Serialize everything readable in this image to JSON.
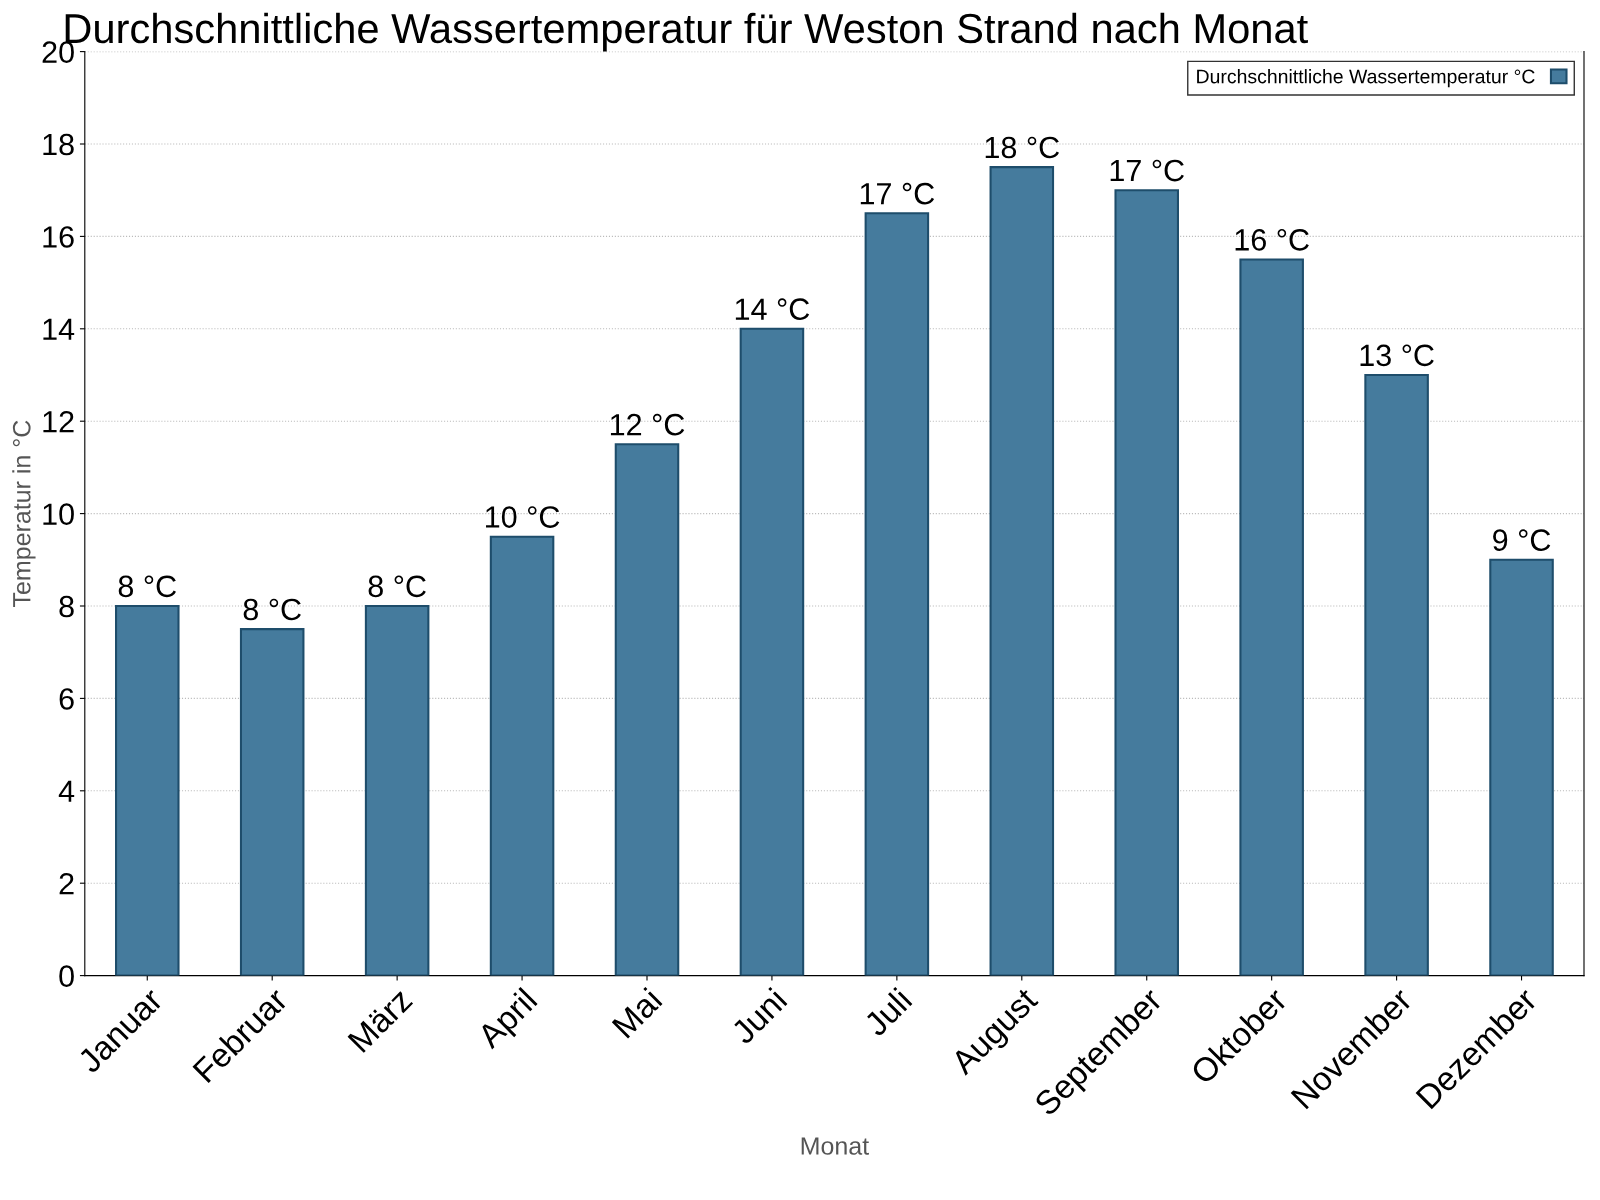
{
  "chart_data": {
    "type": "bar",
    "title": "Durchschnittliche Wassertemperatur für Weston Strand nach Monat",
    "xlabel": "Monat",
    "ylabel": "Temperatur in °C",
    "categories": [
      "Januar",
      "Februar",
      "März",
      "April",
      "Mai",
      "Juni",
      "Juli",
      "August",
      "September",
      "Oktober",
      "November",
      "Dezember"
    ],
    "series": [
      {
        "name": "Durchschnittliche Wassertemperatur °C",
        "color": "#457b9d",
        "values": [
          8,
          7.5,
          8,
          9.5,
          11.5,
          14,
          16.5,
          17.5,
          17,
          15.5,
          13,
          9
        ],
        "value_labels": [
          "8 °C",
          "8 °C",
          "8 °C",
          "10 °C",
          "12 °C",
          "14 °C",
          "17 °C",
          "18 °C",
          "17 °C",
          "16 °C",
          "13 °C",
          "9 °C"
        ]
      }
    ],
    "ylim": [
      0,
      20
    ],
    "yticks": [
      0,
      2,
      4,
      6,
      8,
      10,
      12,
      14,
      16,
      18,
      20
    ],
    "grid": "y",
    "legend": "top right"
  }
}
